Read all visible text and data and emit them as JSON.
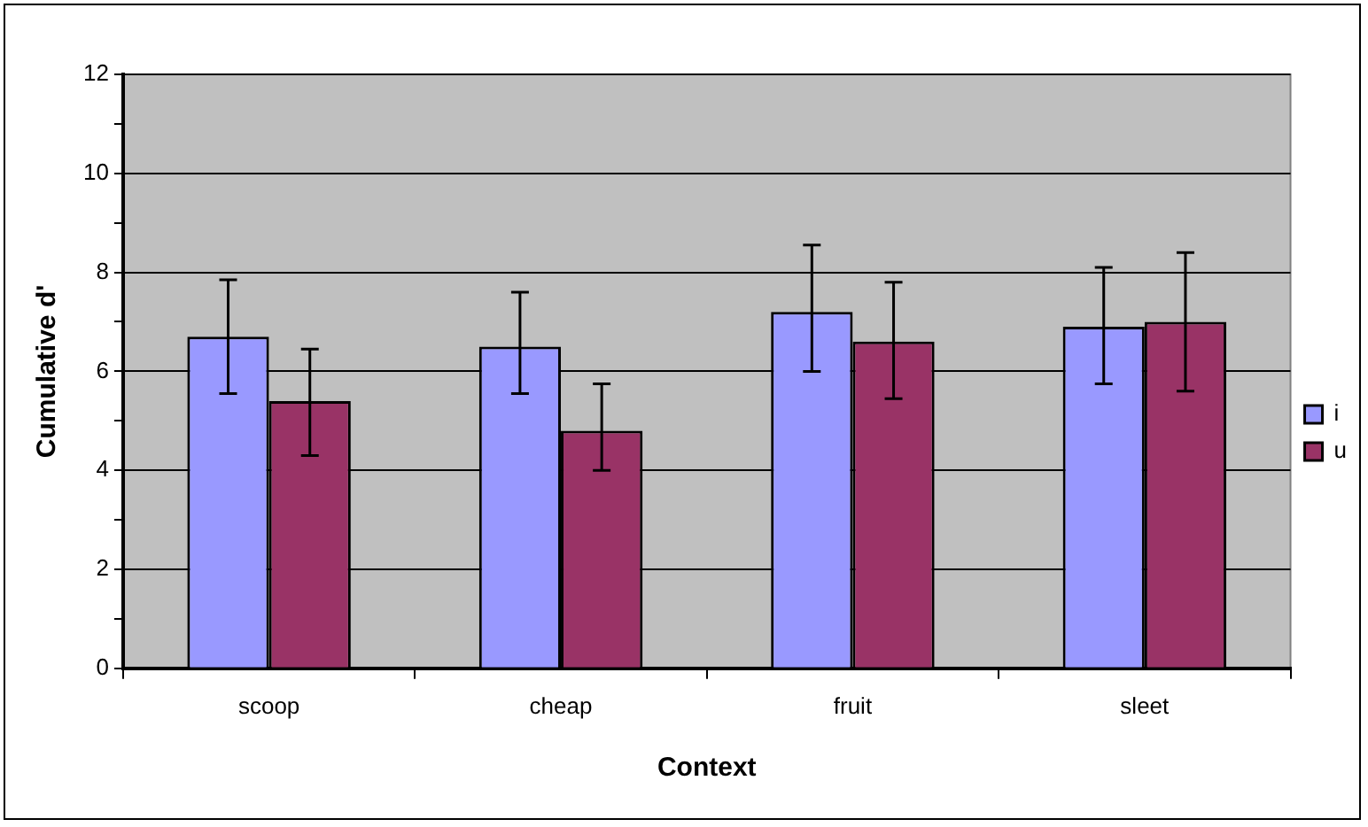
{
  "chart_data": {
    "type": "bar",
    "xlabel": "Context",
    "ylabel": "Cumulative d'",
    "categories": [
      "scoop",
      "cheap",
      "fruit",
      "sleet"
    ],
    "series": [
      {
        "name": "i",
        "color": "#9999ff",
        "values": [
          6.7,
          6.5,
          7.2,
          6.9
        ],
        "errors": [
          [
            5.55,
            7.85
          ],
          [
            5.55,
            7.6
          ],
          [
            6.0,
            8.55
          ],
          [
            5.75,
            8.1
          ]
        ]
      },
      {
        "name": "u",
        "color": "#993366",
        "values": [
          5.4,
          4.8,
          6.6,
          7.0
        ],
        "errors": [
          [
            4.3,
            6.45
          ],
          [
            4.0,
            5.75
          ],
          [
            5.45,
            7.8
          ],
          [
            5.6,
            8.4
          ]
        ]
      }
    ],
    "ylim": [
      0,
      12
    ],
    "yticks": [
      0,
      {
        "value": 1,
        "label": null
      },
      2,
      {
        "value": 3,
        "label": null
      },
      4,
      {
        "value": 5,
        "label": null
      },
      6,
      {
        "value": 7,
        "label": null
      },
      8,
      {
        "value": 9,
        "label": null
      },
      10,
      {
        "value": 11,
        "label": null
      },
      12
    ],
    "grid": "y",
    "legend": "right"
  }
}
